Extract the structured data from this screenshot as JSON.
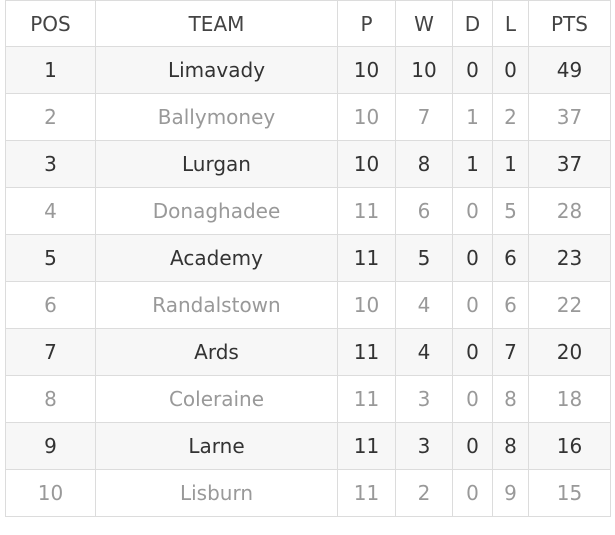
{
  "table": {
    "header": [
      "POS",
      "TEAM",
      "P",
      "W",
      "D",
      "L",
      "PTS"
    ],
    "rows": [
      [
        1,
        "Limavady",
        10,
        10,
        0,
        0,
        49
      ],
      [
        2,
        "Ballymoney",
        10,
        7,
        1,
        2,
        37
      ],
      [
        3,
        "Lurgan",
        10,
        8,
        1,
        1,
        37
      ],
      [
        4,
        "Donaghadee",
        11,
        6,
        0,
        5,
        28
      ],
      [
        5,
        "Academy",
        11,
        5,
        0,
        6,
        23
      ],
      [
        6,
        "Randalstown",
        10,
        4,
        0,
        6,
        22
      ],
      [
        7,
        "Ards",
        11,
        4,
        0,
        7,
        20
      ],
      [
        8,
        "Coleraine",
        11,
        3,
        0,
        8,
        18
      ],
      [
        9,
        "Larne",
        11,
        3,
        0,
        8,
        16
      ],
      [
        10,
        "Lisburn",
        11,
        2,
        0,
        9,
        15
      ]
    ]
  }
}
